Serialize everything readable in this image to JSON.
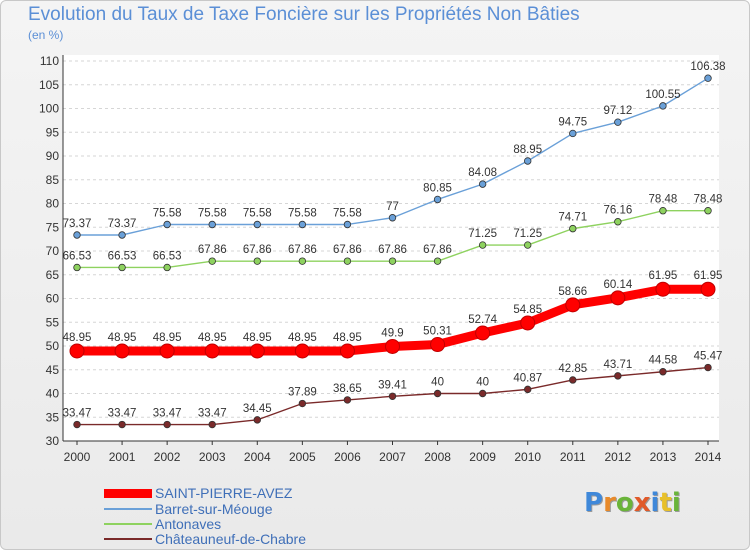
{
  "header": {
    "title": "Evolution du Taux de Taxe Foncière sur les Propriétés Non Bâties",
    "unit": "(en %)"
  },
  "logo": {
    "text": "Proxiti"
  },
  "chart_data": {
    "type": "line",
    "title": "Evolution du Taux de Taxe Foncière sur les Propriétés Non Bâties",
    "ylabel": "(en %)",
    "xlabel": "",
    "ylim": [
      30,
      110
    ],
    "yticks": [
      30,
      35,
      40,
      45,
      50,
      55,
      60,
      65,
      70,
      75,
      80,
      85,
      90,
      95,
      100,
      105,
      110
    ],
    "grid": "horizontal",
    "legend_position": "bottom-left",
    "x": [
      "2000",
      "2001",
      "2002",
      "2003",
      "2004",
      "2005",
      "2006",
      "2007",
      "2008",
      "2009",
      "2010",
      "2011",
      "2012",
      "2013",
      "2014"
    ],
    "series": [
      {
        "name": "SAINT-PIERRE-AVEZ",
        "color": "#ff0000",
        "values": [
          48.95,
          48.95,
          48.95,
          48.95,
          48.95,
          48.95,
          48.95,
          49.9,
          50.31,
          52.74,
          54.85,
          58.66,
          60.14,
          61.95,
          61.95
        ],
        "labels": [
          "48.95",
          "48.95",
          "48.95",
          "48.95",
          "48.95",
          "48.95",
          "48.95",
          "49.9",
          "50.31",
          "52.74",
          "54.85",
          "58.66",
          "60.14",
          "61.95",
          "61.95"
        ]
      },
      {
        "name": "Barret-sur-Méouge",
        "color": "#6aa0d8",
        "values": [
          73.37,
          73.37,
          75.58,
          75.58,
          75.58,
          75.58,
          75.58,
          77,
          80.85,
          84.08,
          88.95,
          94.75,
          97.12,
          100.55,
          106.38
        ],
        "labels": [
          "73.37",
          "73.37",
          "75.58",
          "75.58",
          "75.58",
          "75.58",
          "75.58",
          "77",
          "80.85",
          "84.08",
          "88.95",
          "94.75",
          "97.12",
          "100.55",
          "106.38"
        ]
      },
      {
        "name": "Antonaves",
        "color": "#8ed25f",
        "values": [
          66.53,
          66.53,
          66.53,
          67.86,
          67.86,
          67.86,
          67.86,
          67.86,
          67.86,
          71.25,
          71.25,
          74.71,
          76.16,
          78.48,
          78.48
        ],
        "labels": [
          "66.53",
          "66.53",
          "66.53",
          "67.86",
          "67.86",
          "67.86",
          "67.86",
          "67.86",
          "67.86",
          "71.25",
          "71.25",
          "74.71",
          "76.16",
          "78.48",
          "78.48"
        ]
      },
      {
        "name": "Châteauneuf-de-Chabre",
        "color": "#7a2a2a",
        "values": [
          33.47,
          33.47,
          33.47,
          33.47,
          34.45,
          37.89,
          38.65,
          39.41,
          40,
          40,
          40.87,
          42.85,
          43.71,
          44.58,
          45.47
        ],
        "labels": [
          "33.47",
          "33.47",
          "33.47",
          "33.47",
          "34.45",
          "37.89",
          "38.65",
          "39.41",
          "40",
          "40",
          "40.87",
          "42.85",
          "43.71",
          "44.58",
          "45.47"
        ]
      }
    ]
  }
}
